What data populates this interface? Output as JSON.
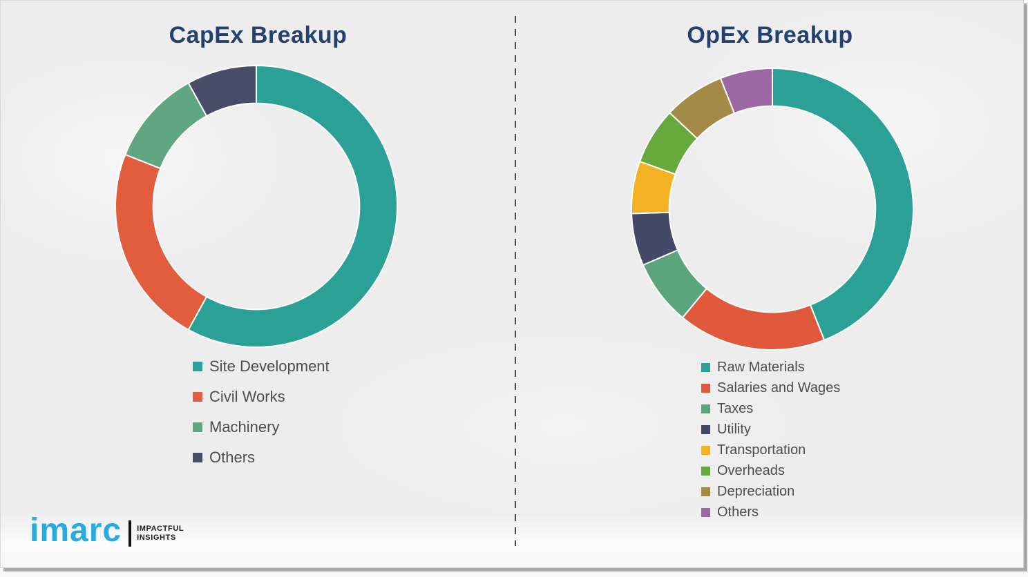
{
  "theme": {
    "title_color": "#24406e",
    "legend_text_color": "#4d4d4d",
    "divider_color": "#4a4a4a",
    "background": "#ededee",
    "frame_shadow": "#a9a9a9",
    "brand_color": "#29abe2"
  },
  "logo": {
    "brand": "imarc",
    "tagline_line1": "IMPACTFUL",
    "tagline_line2": "INSIGHTS"
  },
  "chart_data": [
    {
      "type": "pie",
      "subtype": "donut",
      "title": "CapEx Breakup",
      "unit": "%",
      "categories": [
        "Site Development",
        "Civil Works",
        "Machinery",
        "Others"
      ],
      "values": [
        58,
        23,
        11,
        8
      ],
      "colors": [
        "#2aa096",
        "#e25c3e",
        "#61a682",
        "#474d68"
      ],
      "start_angle_deg": 0,
      "direction": "clockwise",
      "inner_radius_ratio": 0.732,
      "slice_gap_stroke": "#ffffff",
      "legend_position": "below",
      "data_labels": false
    },
    {
      "type": "pie",
      "subtype": "donut",
      "title": "OpEx Breakup",
      "unit": "%",
      "categories": [
        "Raw Materials",
        "Salaries and Wages",
        "Taxes",
        "Utility",
        "Transportation",
        "Overheads",
        "Depreciation",
        "Others"
      ],
      "values": [
        44,
        17,
        7.5,
        6,
        6,
        6.5,
        7,
        6
      ],
      "colors": [
        "#2aa096",
        "#e0593c",
        "#5ca47e",
        "#424a66",
        "#f2b224",
        "#67a93c",
        "#a38b47",
        "#9b68a4"
      ],
      "start_angle_deg": 0,
      "direction": "clockwise",
      "inner_radius_ratio": 0.732,
      "slice_gap_stroke": "#ffffff",
      "legend_position": "below",
      "data_labels": false
    }
  ]
}
